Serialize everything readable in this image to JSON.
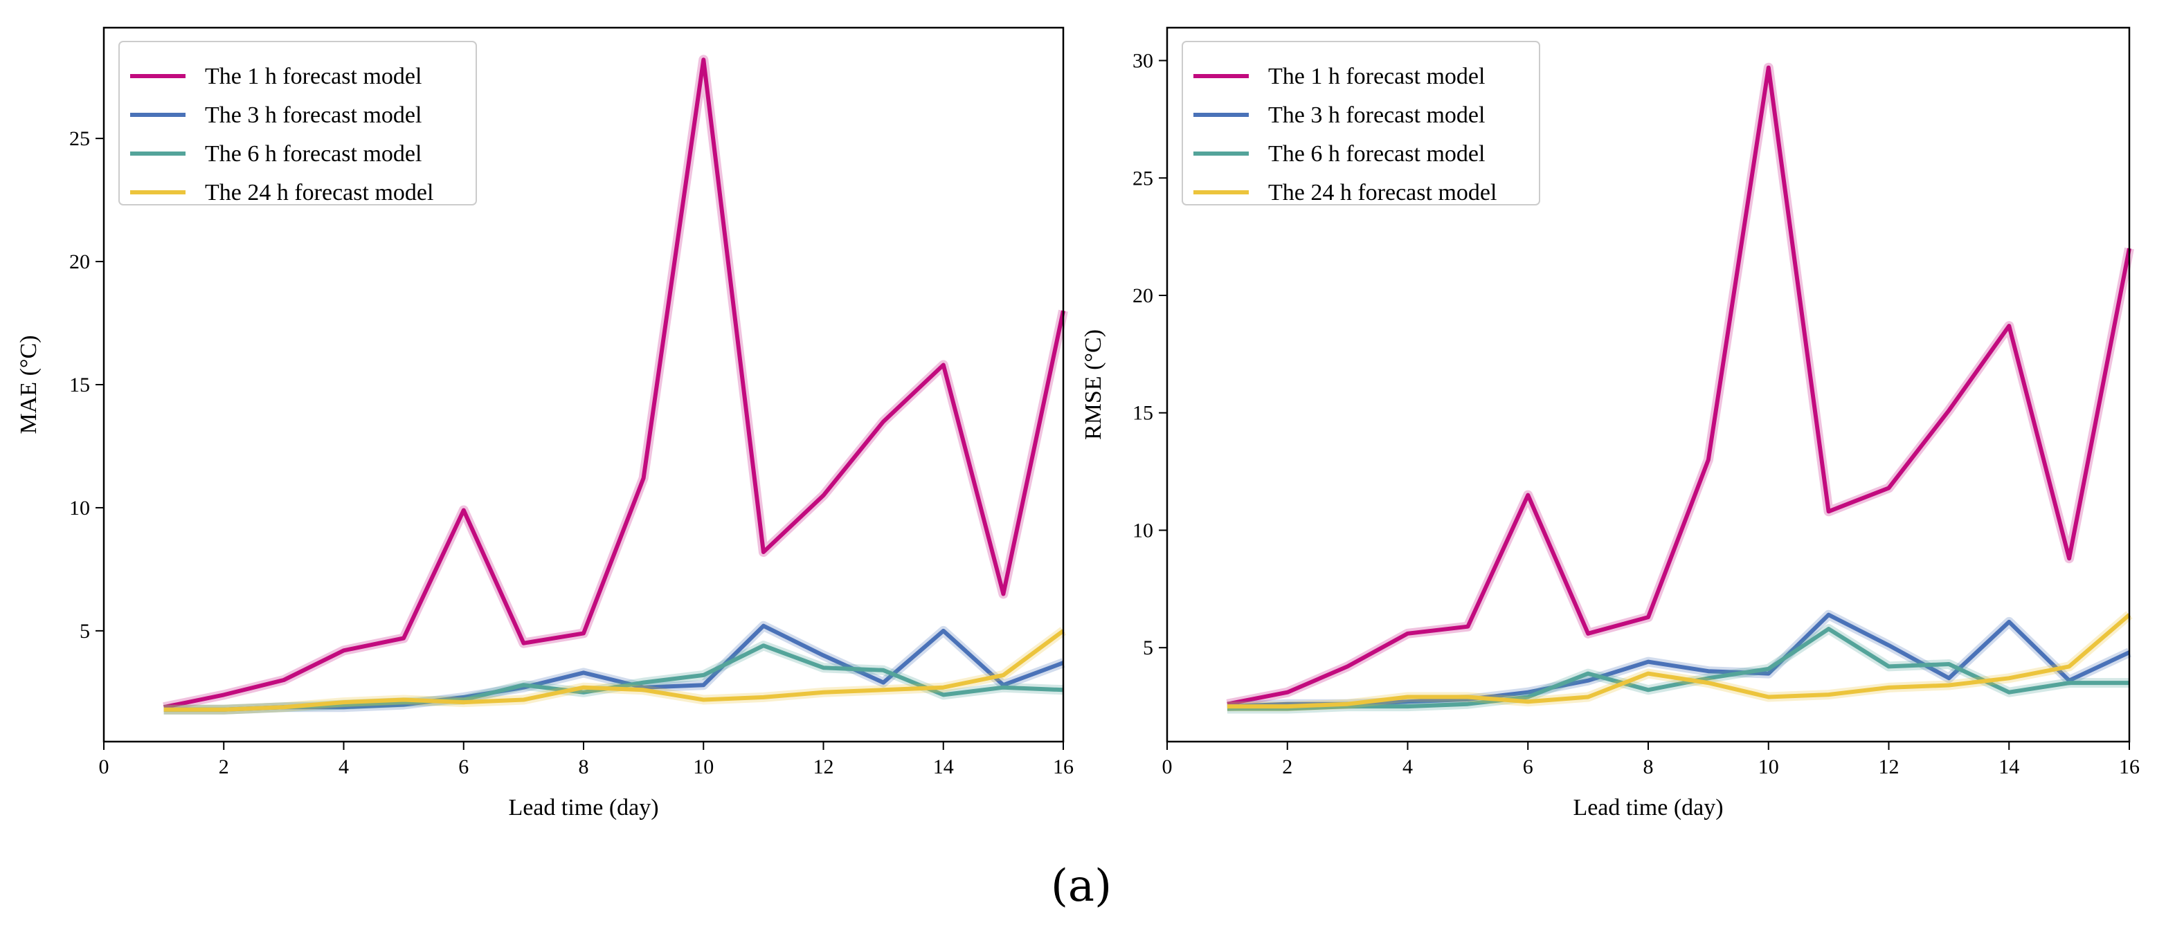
{
  "figure_caption": "(a)",
  "colors": {
    "h1": "#c20a7e",
    "h3": "#4a72b8",
    "h6": "#54a49a",
    "h24": "#ecc43c"
  },
  "chart_data": [
    {
      "type": "line",
      "title": "",
      "xlabel": "Lead time (day)",
      "ylabel": "MAE (°C)",
      "xlim": [
        0,
        16
      ],
      "ylim": [
        0.5,
        29.5
      ],
      "xticks": [
        "0",
        "2",
        "4",
        "6",
        "8",
        "10",
        "12",
        "14",
        "16"
      ],
      "yticks": [
        "5",
        "10",
        "15",
        "20",
        "25"
      ],
      "ytick_values": [
        5,
        10,
        15,
        20,
        25
      ],
      "grid": false,
      "legend_position": "top-left",
      "x": [
        1,
        2,
        3,
        4,
        5,
        6,
        7,
        8,
        9,
        10,
        11,
        12,
        13,
        14,
        15,
        16
      ],
      "series": [
        {
          "name": "The 1 h forecast model",
          "color": "h1",
          "values": [
            1.9,
            2.4,
            3.0,
            4.2,
            4.7,
            9.9,
            4.5,
            4.9,
            11.2,
            28.2,
            8.2,
            10.5,
            13.5,
            15.8,
            6.5,
            18.0
          ]
        },
        {
          "name": "The 3 h forecast model",
          "color": "h3",
          "values": [
            1.8,
            1.8,
            1.9,
            1.9,
            2.0,
            2.3,
            2.7,
            3.3,
            2.7,
            2.8,
            5.2,
            4.0,
            2.9,
            5.0,
            2.8,
            3.7
          ]
        },
        {
          "name": "The 6 h forecast model",
          "color": "h6",
          "values": [
            1.8,
            1.8,
            1.9,
            2.0,
            2.1,
            2.2,
            2.8,
            2.5,
            2.9,
            3.2,
            4.4,
            3.5,
            3.4,
            2.4,
            2.7,
            2.6
          ]
        },
        {
          "name": "The 24 h forecast model",
          "color": "h24",
          "values": [
            1.8,
            1.8,
            1.9,
            2.1,
            2.2,
            2.1,
            2.2,
            2.7,
            2.6,
            2.2,
            2.3,
            2.5,
            2.6,
            2.7,
            3.2,
            5.0
          ]
        }
      ]
    },
    {
      "type": "line",
      "title": "",
      "xlabel": "Lead time (day)",
      "ylabel": "RMSE (°C)",
      "xlim": [
        0,
        16
      ],
      "ylim": [
        1,
        31.4
      ],
      "xticks": [
        "0",
        "2",
        "4",
        "6",
        "8",
        "10",
        "12",
        "14",
        "16"
      ],
      "yticks": [
        "5",
        "10",
        "15",
        "20",
        "25",
        "30"
      ],
      "ytick_values": [
        5,
        10,
        15,
        20,
        25,
        30
      ],
      "grid": false,
      "legend_position": "top-left",
      "x": [
        1,
        2,
        3,
        4,
        5,
        6,
        7,
        8,
        9,
        10,
        11,
        12,
        13,
        14,
        15,
        16
      ],
      "series": [
        {
          "name": "The 1 h forecast model",
          "color": "h1",
          "values": [
            2.6,
            3.1,
            4.2,
            5.6,
            5.9,
            11.5,
            5.6,
            6.3,
            13.0,
            29.7,
            10.8,
            11.8,
            15.1,
            18.7,
            8.8,
            22.0
          ]
        },
        {
          "name": "The 3 h forecast model",
          "color": "h3",
          "values": [
            2.5,
            2.6,
            2.6,
            2.7,
            2.8,
            3.1,
            3.6,
            4.4,
            4.0,
            3.9,
            6.4,
            5.1,
            3.7,
            6.1,
            3.6,
            4.8
          ]
        },
        {
          "name": "The 6 h forecast model",
          "color": "h6",
          "values": [
            2.4,
            2.4,
            2.5,
            2.5,
            2.6,
            2.9,
            3.9,
            3.2,
            3.7,
            4.1,
            5.8,
            4.2,
            4.3,
            3.1,
            3.5,
            3.5
          ]
        },
        {
          "name": "The 24 h forecast model",
          "color": "h24",
          "values": [
            2.5,
            2.5,
            2.6,
            2.9,
            2.9,
            2.7,
            2.9,
            3.9,
            3.5,
            2.9,
            3.0,
            3.3,
            3.4,
            3.7,
            4.2,
            6.4
          ]
        }
      ]
    }
  ]
}
